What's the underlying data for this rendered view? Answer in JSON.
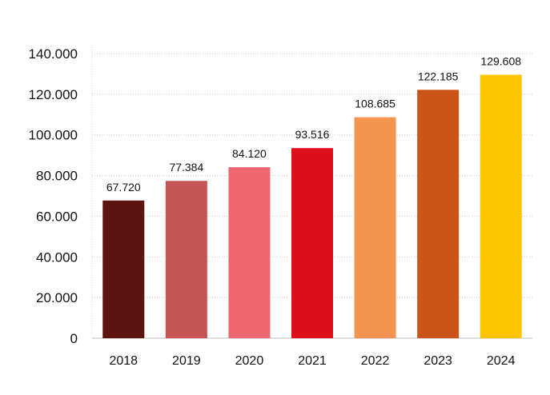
{
  "chart_data": {
    "type": "bar",
    "title": "",
    "xlabel": "",
    "ylabel": "",
    "categories": [
      "2018",
      "2019",
      "2020",
      "2021",
      "2022",
      "2023",
      "2024"
    ],
    "values": [
      67720,
      77384,
      84120,
      93516,
      108685,
      122185,
      129608
    ],
    "value_labels": [
      "67.720",
      "77.384",
      "84.120",
      "93.516",
      "108.685",
      "122.185",
      "129.608"
    ],
    "bar_colors": [
      "#5c1411",
      "#c65454",
      "#ee6670",
      "#dd0f1b",
      "#f39550",
      "#cb5518",
      "#fdc500"
    ],
    "ylim": [
      0,
      140000
    ],
    "yticks": [
      0,
      20000,
      40000,
      60000,
      80000,
      100000,
      120000,
      140000
    ],
    "ytick_labels": [
      "0",
      "20.000",
      "40.000",
      "60.000",
      "80.000",
      "100.000",
      "120.000",
      "140.000"
    ],
    "grid": true,
    "legend": false
  }
}
